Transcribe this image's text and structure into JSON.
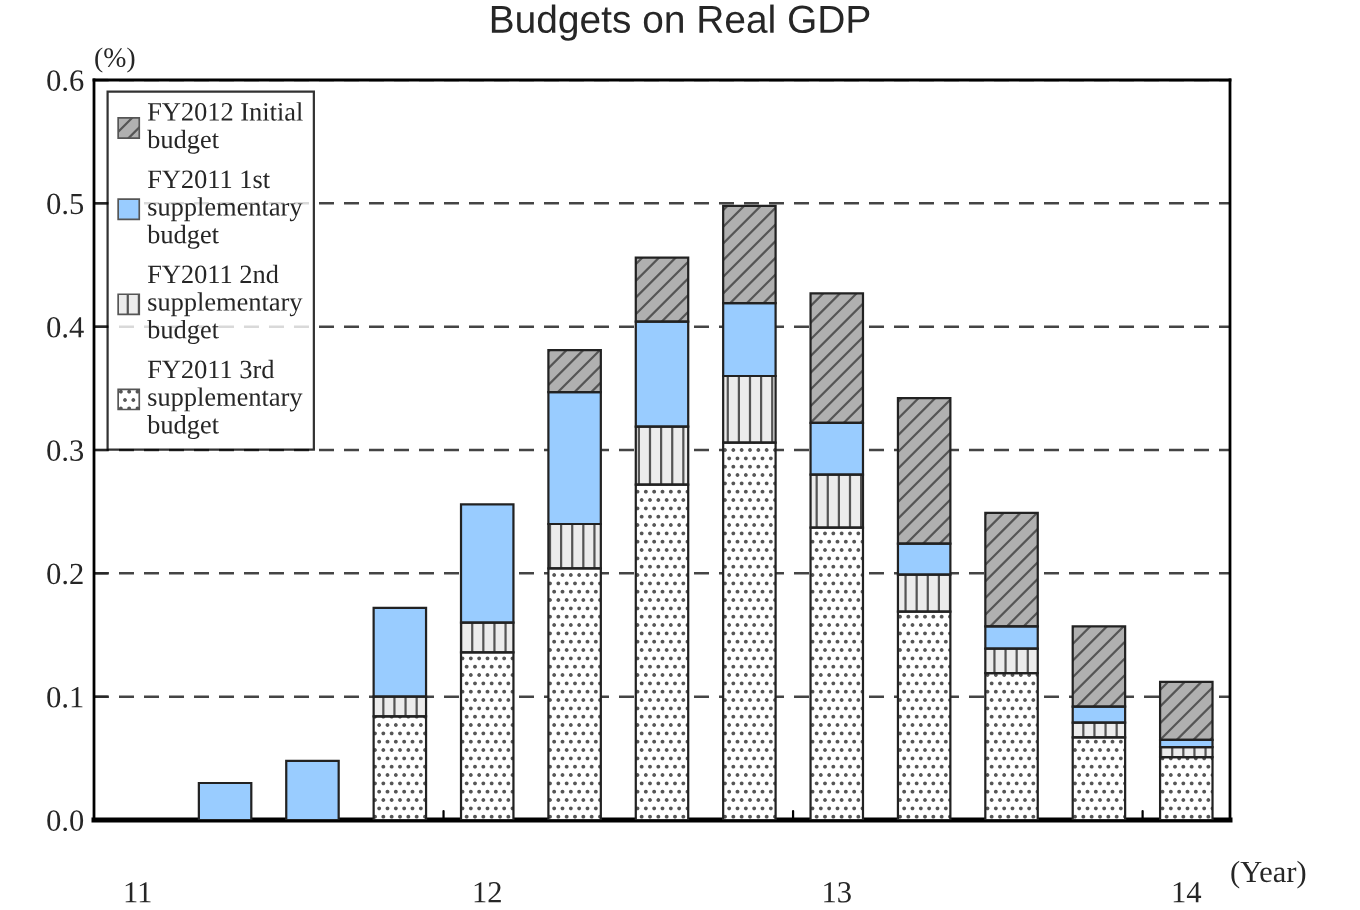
{
  "chart_data": {
    "type": "bar",
    "stacked": true,
    "title": "Budgets on Real GDP",
    "ylabel": "(%)",
    "xlabel": "(Year)",
    "categories": [
      "11",
      null,
      null,
      null,
      "12",
      null,
      null,
      null,
      "13",
      null,
      null,
      null,
      "14"
    ],
    "series": [
      {
        "name": "FY2011 3rd\nsupplementary\nbudget",
        "color": "#ffffff",
        "values": [
          null,
          0,
          0,
          0.084,
          0.136,
          0.204,
          0.272,
          0.306,
          0.237,
          0.169,
          0.119,
          0.067,
          0.051
        ]
      },
      {
        "name": "FY2011 2nd\nsupplementary\nbudget",
        "color": "#ececec",
        "values": [
          null,
          0,
          0,
          0.016,
          0.024,
          0.036,
          0.047,
          0.054,
          0.043,
          0.03,
          0.02,
          0.012,
          0.008
        ]
      },
      {
        "name": "FY2011 1st\nsupplementary\nbudget",
        "color": "#99ccff",
        "values": [
          null,
          0.03,
          0.048,
          0.072,
          0.096,
          0.107,
          0.085,
          0.059,
          0.042,
          0.025,
          0.018,
          0.013,
          0.006
        ]
      },
      {
        "name": "FY2012 Initial\nbudget",
        "color": "#b0b0b0",
        "values": [
          null,
          0,
          0,
          0,
          0,
          0.034,
          0.052,
          0.079,
          0.105,
          0.118,
          0.092,
          0.065,
          0.047
        ]
      }
    ],
    "ylim": [
      0,
      0.6
    ],
    "yticks": [
      {
        "value": 0,
        "label": "0.0"
      },
      0.1,
      0.2,
      0.3,
      0.4,
      0.5,
      0.6
    ],
    "grid": "y",
    "legend": "top left"
  }
}
